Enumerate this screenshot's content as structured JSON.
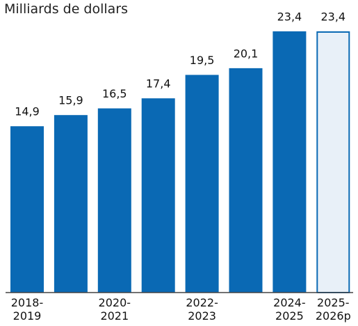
{
  "chart_data": {
    "type": "bar",
    "title": "Milliards de dollars",
    "categories": [
      "2018-2019",
      null,
      "2020-2021",
      null,
      "2022-2023",
      null,
      "2024-2025",
      "2025-2026p"
    ],
    "values": [
      14.9,
      15.9,
      16.5,
      17.4,
      19.5,
      20.1,
      23.4,
      23.4
    ],
    "value_labels": [
      "14,9",
      "15,9",
      "16,5",
      "17,4",
      "19,5",
      "20,1",
      "23,4",
      "23,4"
    ],
    "color": "#0a69b4",
    "projection_fill": "#e8f0f8"
  }
}
